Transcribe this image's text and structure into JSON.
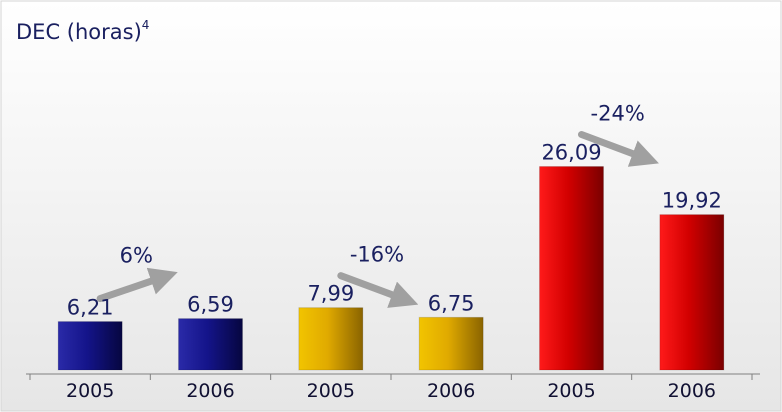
{
  "chart_data": {
    "type": "bar",
    "title": "DEC (horas)",
    "title_superscript": "4",
    "categories": [
      "2005",
      "2006",
      "2005",
      "2006",
      "2005",
      "2006"
    ],
    "values": [
      6.21,
      6.59,
      7.99,
      6.75,
      26.09,
      19.92
    ],
    "value_labels": [
      "6,21",
      "6,59",
      "7,99",
      "6,75",
      "26,09",
      "19,92"
    ],
    "bar_colors": [
      "#1a1a8c",
      "#1a1a8c",
      "#d9a800",
      "#d9a800",
      "#d40000",
      "#d40000"
    ],
    "changes": [
      "6%",
      "-16%",
      "-24%"
    ],
    "ylim": [
      0,
      30
    ],
    "grid": false,
    "xlabel": "",
    "ylabel": ""
  },
  "colors": {
    "background_top": "#ffffff",
    "background_bottom": "#e9e9e9",
    "text": "#1a2060",
    "arrow": "#a0a0a0",
    "axis": "#808080"
  }
}
